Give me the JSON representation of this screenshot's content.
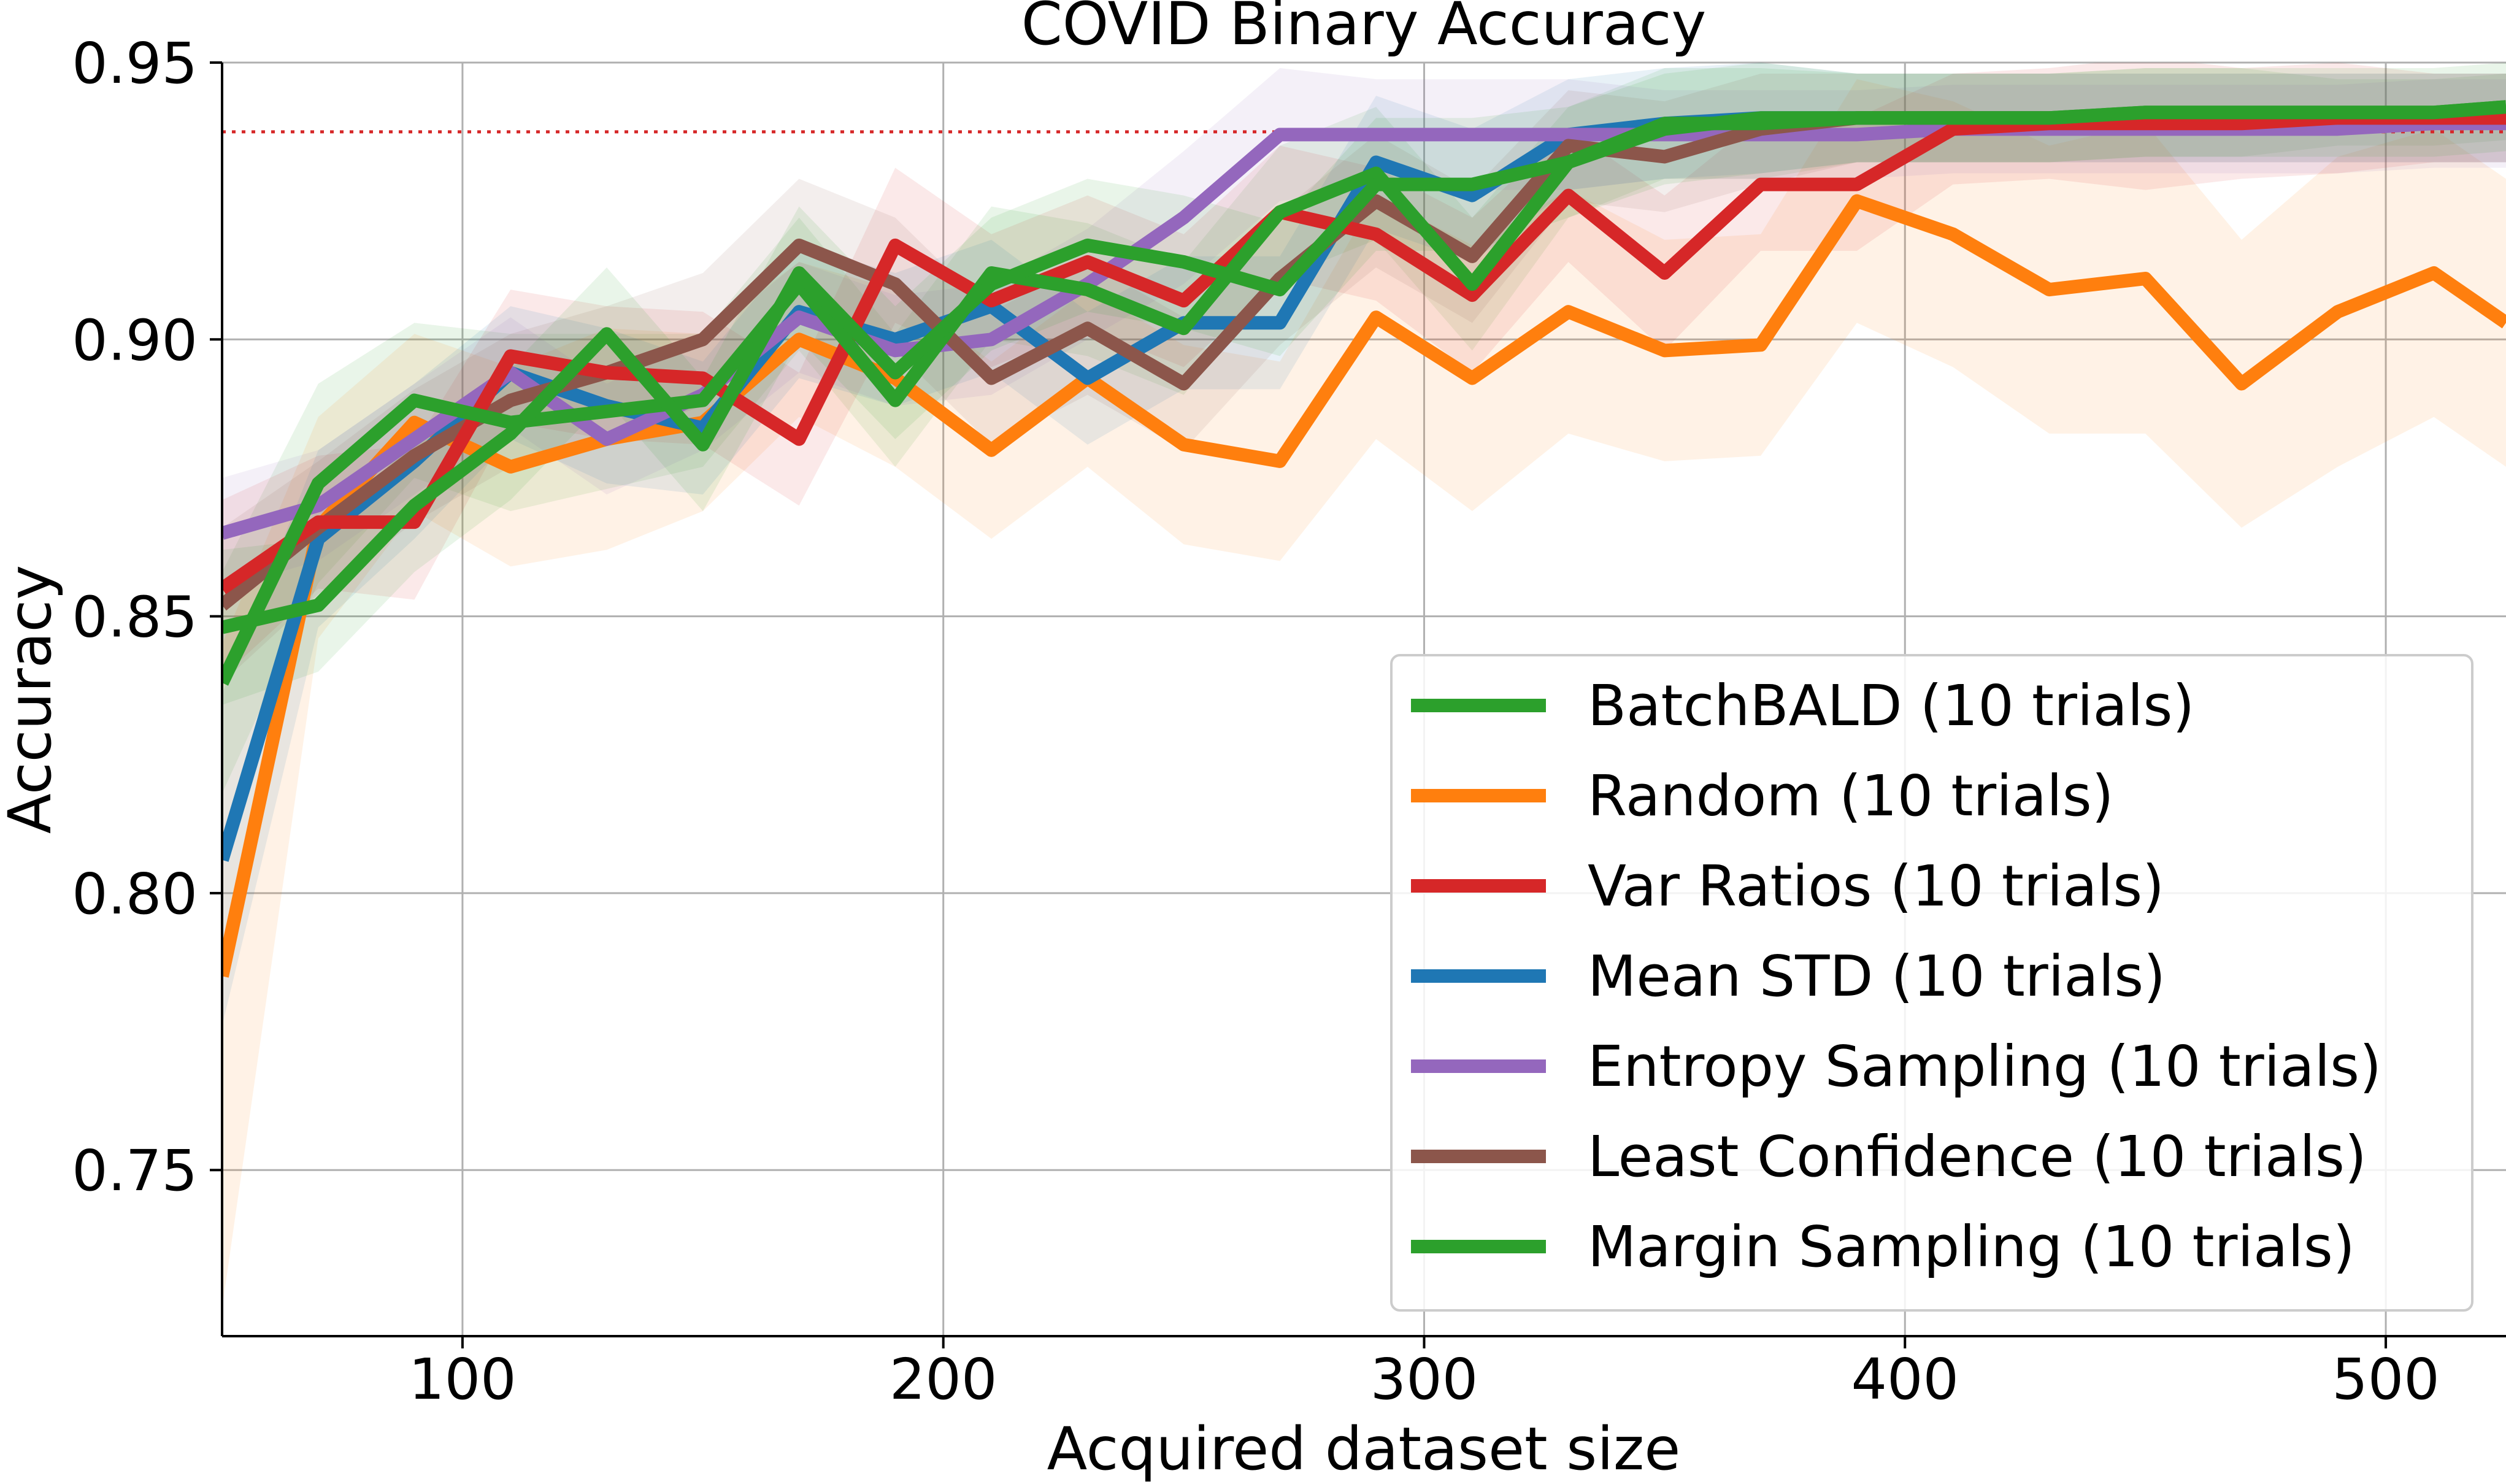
{
  "chart_data": {
    "type": "line",
    "title": "COVID Binary Accuracy",
    "xlabel": "Acquired dataset size",
    "ylabel": "Accuracy",
    "xlim": [
      50,
      525
    ],
    "ylim": [
      0.72,
      0.95
    ],
    "xticks": [
      100,
      200,
      300,
      400,
      500
    ],
    "xtick_labels": [
      "100",
      "200",
      "300",
      "400",
      "500"
    ],
    "yticks": [
      0.75,
      0.8,
      0.85,
      0.9,
      0.95
    ],
    "ytick_labels": [
      "0.75",
      "0.80",
      "0.85",
      "0.90",
      "0.95"
    ],
    "grid": true,
    "legend_position": "lower-right",
    "reference_line": {
      "y": 0.9375,
      "color": "#d62728",
      "style": "dotted"
    },
    "x": [
      50,
      70,
      90,
      110,
      130,
      150,
      170,
      190,
      210,
      230,
      250,
      270,
      290,
      310,
      330,
      350,
      370,
      390,
      410,
      430,
      450,
      470,
      490,
      510,
      525
    ],
    "series": [
      {
        "name": "BatchBALD (10 trials)",
        "color": "#2ca02c",
        "values": [
          0.838,
          0.874,
          0.889,
          0.885,
          0.887,
          0.889,
          0.91,
          0.889,
          0.912,
          0.909,
          0.902,
          0.923,
          0.93,
          0.91,
          0.932,
          0.939,
          0.939,
          0.94,
          0.94,
          0.94,
          0.941,
          0.941,
          0.941,
          0.941,
          0.942
        ],
        "band": [
          0.02,
          0.018,
          0.014,
          0.016,
          0.014,
          0.012,
          0.012,
          0.012,
          0.012,
          0.012,
          0.012,
          0.012,
          0.012,
          0.012,
          0.01,
          0.01,
          0.01,
          0.008,
          0.008,
          0.008,
          0.008,
          0.008,
          0.006,
          0.006,
          0.006
        ]
      },
      {
        "name": "Random (10 trials)",
        "color": "#ff7f0e",
        "values": [
          0.785,
          0.866,
          0.885,
          0.877,
          0.882,
          0.885,
          0.9,
          0.893,
          0.88,
          0.893,
          0.881,
          0.878,
          0.904,
          0.893,
          0.905,
          0.898,
          0.899,
          0.925,
          0.919,
          0.909,
          0.911,
          0.892,
          0.905,
          0.912,
          0.903
        ],
        "band": [
          0.06,
          0.02,
          0.016,
          0.018,
          0.02,
          0.016,
          0.014,
          0.016,
          0.016,
          0.016,
          0.018,
          0.018,
          0.022,
          0.024,
          0.022,
          0.02,
          0.02,
          0.022,
          0.024,
          0.026,
          0.028,
          0.026,
          0.028,
          0.026,
          0.026
        ]
      },
      {
        "name": "Var Ratios (10 trials)",
        "color": "#d62728",
        "values": [
          0.855,
          0.867,
          0.867,
          0.897,
          0.894,
          0.893,
          0.882,
          0.917,
          0.907,
          0.914,
          0.907,
          0.923,
          0.919,
          0.908,
          0.926,
          0.912,
          0.928,
          0.928,
          0.938,
          0.939,
          0.939,
          0.939,
          0.94,
          0.94,
          0.94
        ],
        "band": [
          0.016,
          0.012,
          0.014,
          0.012,
          0.012,
          0.012,
          0.012,
          0.014,
          0.012,
          0.012,
          0.012,
          0.012,
          0.012,
          0.014,
          0.012,
          0.014,
          0.012,
          0.012,
          0.01,
          0.01,
          0.012,
          0.01,
          0.01,
          0.008,
          0.008
        ]
      },
      {
        "name": "Mean STD (10 trials)",
        "color": "#1f77b4",
        "values": [
          0.806,
          0.864,
          0.878,
          0.894,
          0.888,
          0.884,
          0.905,
          0.9,
          0.906,
          0.893,
          0.903,
          0.903,
          0.932,
          0.926,
          0.937,
          0.939,
          0.94,
          0.94,
          0.94,
          0.94,
          0.94,
          0.94,
          0.94,
          0.94,
          0.94
        ],
        "band": [
          0.03,
          0.016,
          0.014,
          0.012,
          0.014,
          0.012,
          0.012,
          0.012,
          0.012,
          0.012,
          0.012,
          0.012,
          0.012,
          0.012,
          0.01,
          0.01,
          0.01,
          0.008,
          0.008,
          0.008,
          0.008,
          0.008,
          0.008,
          0.008,
          0.008
        ]
      },
      {
        "name": "Entropy Sampling (10 trials)",
        "color": "#9467bd",
        "values": [
          0.865,
          0.87,
          0.882,
          0.894,
          0.882,
          0.89,
          0.904,
          0.898,
          0.9,
          0.91,
          0.922,
          0.937,
          0.937,
          0.937,
          0.937,
          0.937,
          0.937,
          0.937,
          0.938,
          0.938,
          0.938,
          0.938,
          0.938,
          0.939,
          0.939
        ],
        "band": [
          0.01,
          0.01,
          0.01,
          0.01,
          0.01,
          0.01,
          0.01,
          0.01,
          0.01,
          0.01,
          0.012,
          0.012,
          0.01,
          0.01,
          0.01,
          0.008,
          0.008,
          0.008,
          0.008,
          0.008,
          0.008,
          0.008,
          0.008,
          0.008,
          0.008
        ]
      },
      {
        "name": "Least Confidence (10 trials)",
        "color": "#8c564b",
        "values": [
          0.852,
          0.866,
          0.879,
          0.889,
          0.894,
          0.9,
          0.917,
          0.91,
          0.893,
          0.902,
          0.892,
          0.911,
          0.925,
          0.915,
          0.935,
          0.933,
          0.938,
          0.94,
          0.94,
          0.94,
          0.94,
          0.94,
          0.94,
          0.94,
          0.94
        ],
        "band": [
          0.014,
          0.012,
          0.012,
          0.012,
          0.012,
          0.012,
          0.012,
          0.012,
          0.012,
          0.012,
          0.012,
          0.012,
          0.012,
          0.012,
          0.01,
          0.01,
          0.01,
          0.008,
          0.008,
          0.008,
          0.008,
          0.008,
          0.008,
          0.008,
          0.008
        ]
      },
      {
        "name": "Margin Sampling (10 trials)",
        "color": "#2ca02c",
        "values": [
          0.848,
          0.852,
          0.87,
          0.883,
          0.901,
          0.881,
          0.912,
          0.894,
          0.91,
          0.917,
          0.914,
          0.909,
          0.928,
          0.928,
          0.932,
          0.938,
          0.94,
          0.94,
          0.94,
          0.94,
          0.941,
          0.941,
          0.941,
          0.941,
          0.942
        ],
        "band": [
          0.014,
          0.012,
          0.012,
          0.012,
          0.012,
          0.012,
          0.012,
          0.012,
          0.012,
          0.012,
          0.012,
          0.012,
          0.012,
          0.012,
          0.01,
          0.01,
          0.01,
          0.008,
          0.008,
          0.008,
          0.008,
          0.008,
          0.008,
          0.008,
          0.008
        ]
      }
    ]
  }
}
